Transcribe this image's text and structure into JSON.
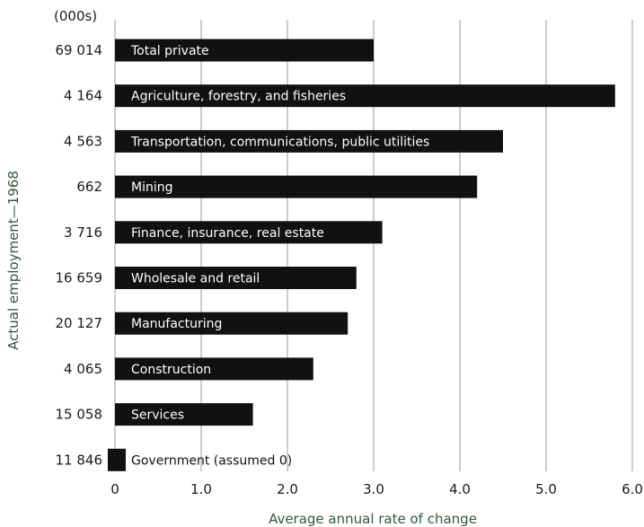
{
  "chart_data": {
    "type": "bar",
    "orientation": "horizontal",
    "units_label": "(000s)",
    "ylabel": "Actual employment—1968",
    "xlabel": "Average annual rate of change",
    "xlim": [
      0,
      6.0
    ],
    "x_ticks": [
      "0",
      "1.0",
      "2.0",
      "3.0",
      "4.0",
      "5.0",
      "6.0"
    ],
    "grid": true,
    "bar_color": "#111111",
    "label_color": "#ffffff",
    "axis_label_color": "#2f5a3a",
    "categories": [
      "Total private",
      "Agriculture, forestry, and fisheries",
      "Transportation, communications, public utilities",
      "Mining",
      "Finance, insurance, real estate",
      "Wholesale and retail",
      "Manufacturing",
      "Construction",
      "Services",
      "Government (assumed 0)"
    ],
    "employment_1968": [
      "69 014",
      "4 164",
      "4 563",
      "662",
      "3 716",
      "16 659",
      "20 127",
      "4 065",
      "15 058",
      "11 846"
    ],
    "values": [
      3.0,
      5.8,
      4.5,
      4.2,
      3.1,
      2.8,
      2.7,
      2.3,
      1.6,
      0
    ]
  }
}
